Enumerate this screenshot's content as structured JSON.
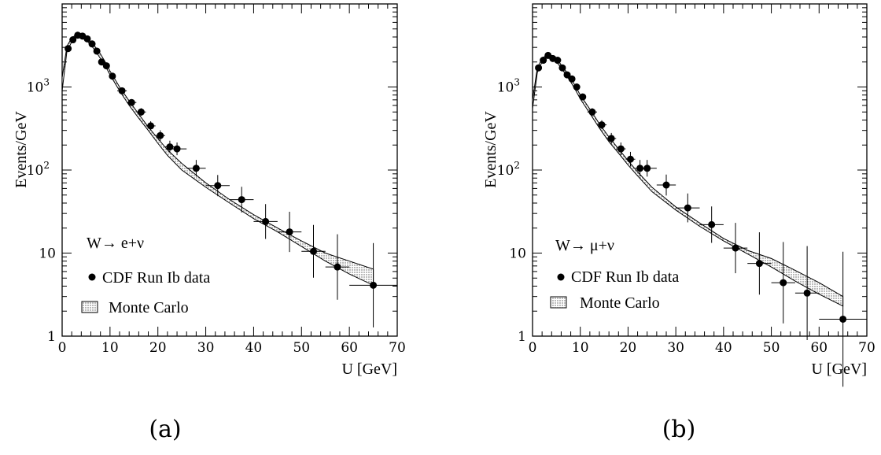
{
  "chart_data": [
    {
      "type": "scatter",
      "panel_label": "(a)",
      "xlabel": "U [GeV]",
      "ylabel": "Events/GeV",
      "xlim": [
        0,
        70
      ],
      "ylim": [
        1,
        10000
      ],
      "y_scale": "log",
      "x_ticks": [
        "0",
        "10",
        "20",
        "30",
        "40",
        "50",
        "60",
        "70"
      ],
      "y_ticks": [
        "1",
        "10",
        "10 2",
        "10 3"
      ],
      "legend": {
        "process": "W→ e+ν",
        "data_label": "CDF Run Ib data",
        "mc_label": "Monte Carlo"
      },
      "series": [
        {
          "name": "CDF Run Ib data",
          "x": [
            1.25,
            2.25,
            3.25,
            4.25,
            5.25,
            6.25,
            7.25,
            8.25,
            9.25,
            10.5,
            12.5,
            14.5,
            16.5,
            18.5,
            20.5,
            22.5,
            24,
            28,
            32.5,
            37.5,
            42.5,
            47.5,
            52.5,
            57.5,
            65
          ],
          "y": [
            2900,
            3700,
            4200,
            4100,
            3800,
            3300,
            2700,
            2000,
            1800,
            1350,
            900,
            650,
            500,
            340,
            260,
            190,
            180,
            105,
            65,
            44,
            24,
            18,
            10.5,
            6.8,
            4.1
          ],
          "xerr": [
            0.25,
            0.5,
            0.5,
            0.5,
            0.5,
            0.5,
            0.5,
            0.5,
            0.5,
            0.5,
            1,
            1,
            1,
            1,
            1,
            1,
            2,
            2,
            2.5,
            2.5,
            2.5,
            2.5,
            2.5,
            2.5,
            5
          ]
        },
        {
          "name": "Monte Carlo",
          "x": [
            0,
            1,
            2,
            3,
            4,
            5,
            6,
            7,
            8,
            9,
            10,
            12,
            14,
            16,
            18,
            20,
            22,
            25,
            30,
            35,
            40,
            45,
            50,
            55,
            60,
            65
          ],
          "y_low": [
            900,
            2700,
            3500,
            4000,
            4000,
            3700,
            3200,
            2700,
            2200,
            1800,
            1400,
            900,
            600,
            420,
            300,
            210,
            150,
            100,
            62,
            40,
            26,
            18,
            12,
            8,
            5.6,
            4.1
          ],
          "y_high": [
            1300,
            3100,
            3900,
            4300,
            4300,
            4000,
            3500,
            3000,
            2500,
            2000,
            1550,
            1000,
            680,
            470,
            330,
            240,
            175,
            120,
            70,
            44,
            29,
            20,
            14,
            10,
            8,
            6.4
          ]
        }
      ]
    },
    {
      "type": "scatter",
      "panel_label": "(b)",
      "xlabel": "U [GeV]",
      "ylabel": "Events/GeV",
      "xlim": [
        0,
        70
      ],
      "ylim": [
        1,
        10000
      ],
      "y_scale": "log",
      "x_ticks": [
        "0",
        "10",
        "20",
        "30",
        "40",
        "50",
        "60",
        "70"
      ],
      "y_ticks": [
        "1",
        "10",
        "10 2",
        "10 3"
      ],
      "legend": {
        "process": "W→ μ+ν",
        "data_label": "CDF Run Ib data",
        "mc_label": "Monte Carlo"
      },
      "series": [
        {
          "name": "CDF Run Ib data",
          "x": [
            1.25,
            2.25,
            3.25,
            4.25,
            5.25,
            6.25,
            7.25,
            8.25,
            9.25,
            10.5,
            12.5,
            14.5,
            16.5,
            18.5,
            20.5,
            22.5,
            24,
            28,
            32.5,
            37.5,
            42.5,
            47.5,
            52.5,
            57.5,
            65
          ],
          "y": [
            1700,
            2100,
            2400,
            2200,
            2100,
            1700,
            1400,
            1250,
            1000,
            760,
            500,
            350,
            240,
            180,
            135,
            105,
            105,
            66,
            35,
            22,
            11.5,
            7.5,
            4.4,
            3.3,
            1.6
          ],
          "xerr": [
            0.25,
            0.5,
            0.5,
            0.5,
            0.5,
            0.5,
            0.5,
            0.5,
            0.5,
            0.5,
            1,
            1,
            1,
            1,
            1,
            1,
            2,
            2,
            2.5,
            2.5,
            2.5,
            2.5,
            2.5,
            2.5,
            5
          ]
        },
        {
          "name": "Monte Carlo",
          "x": [
            0,
            1,
            2,
            3,
            4,
            5,
            6,
            7,
            8,
            9,
            10,
            12,
            14,
            16,
            18,
            20,
            22,
            25,
            30,
            35,
            40,
            45,
            50,
            55,
            60,
            65
          ],
          "y_low": [
            550,
            1500,
            2000,
            2250,
            2200,
            2000,
            1700,
            1400,
            1150,
            920,
            720,
            480,
            320,
            220,
            160,
            115,
            85,
            55,
            33,
            21,
            14,
            9.8,
            6.8,
            4.6,
            3.2,
            2.3
          ],
          "y_high": [
            700,
            1700,
            2200,
            2450,
            2400,
            2200,
            1850,
            1550,
            1280,
            1020,
            800,
            540,
            360,
            250,
            180,
            130,
            95,
            62,
            36,
            23,
            15,
            10.8,
            8.6,
            6.2,
            4.4,
            3.0
          ]
        }
      ]
    }
  ]
}
